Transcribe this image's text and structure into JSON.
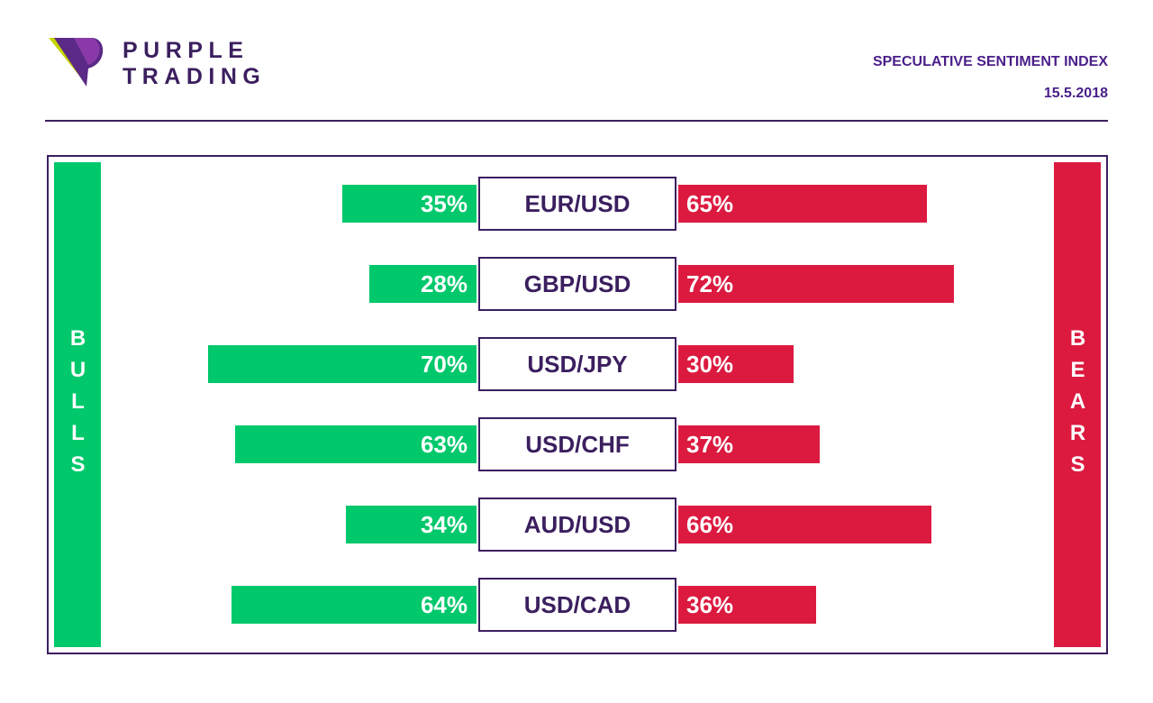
{
  "brand": {
    "name_line1": "PURPLE",
    "name_line2": "TRADING",
    "logo_icon": "purple-trading-logo-icon"
  },
  "header": {
    "title": "SPECULATIVE SENTIMENT INDEX",
    "date": "15.5.2018"
  },
  "colors": {
    "bulls": "#00c86b",
    "bears": "#dc1a40",
    "brand": "#3b1f5f",
    "title": "#4a1f8a"
  },
  "chart_data": {
    "type": "bar",
    "categories": [
      "EUR/USD",
      "GBP/USD",
      "USD/JPY",
      "USD/CHF",
      "AUD/USD",
      "USD/CAD"
    ],
    "series": [
      {
        "name": "BULLS",
        "values": [
          35,
          28,
          70,
          63,
          34,
          64
        ],
        "labels": [
          "35%",
          "28%",
          "70%",
          "63%",
          "34%",
          "64%"
        ]
      },
      {
        "name": "BEARS",
        "values": [
          65,
          72,
          30,
          37,
          66,
          36
        ],
        "labels": [
          "65%",
          "72%",
          "30%",
          "37%",
          "66%",
          "36%"
        ]
      }
    ],
    "unit": "%",
    "xlim": [
      0,
      100
    ],
    "grid": false
  }
}
